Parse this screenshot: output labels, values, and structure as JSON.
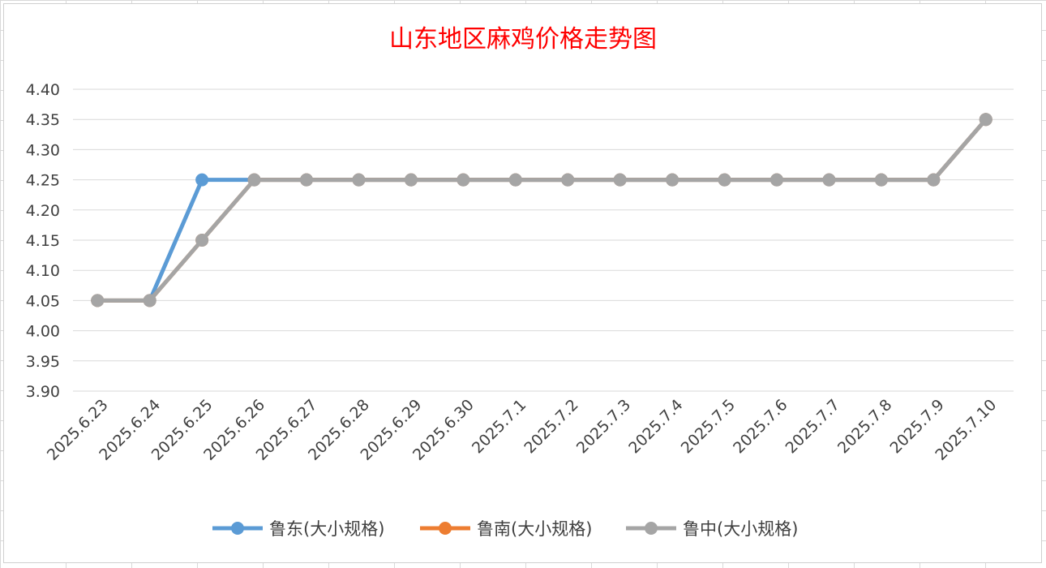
{
  "chart_data": {
    "type": "line",
    "title": "山东地区麻鸡价格走势图",
    "xlabel": "",
    "ylabel": "",
    "ylim": [
      3.9,
      4.4
    ],
    "yticks": [
      "4.40",
      "4.35",
      "4.30",
      "4.25",
      "4.20",
      "4.15",
      "4.10",
      "4.05",
      "4.00",
      "3.95",
      "3.90"
    ],
    "grid": true,
    "legend_position": "bottom",
    "categories": [
      "2025.6.23",
      "2025.6.24",
      "2025.6.25",
      "2025.6.26",
      "2025.6.27",
      "2025.6.28",
      "2025.6.29",
      "2025.6.30",
      "2025.7.1",
      "2025.7.2",
      "2025.7.3",
      "2025.7.4",
      "2025.7.5",
      "2025.7.6",
      "2025.7.7",
      "2025.7.8",
      "2025.7.9",
      "2025.7.10"
    ],
    "series": [
      {
        "name": "鲁东(大小规格)",
        "color": "#5b9bd5",
        "values": [
          4.05,
          4.05,
          4.25,
          4.25,
          4.25,
          4.25,
          4.25,
          4.25,
          4.25,
          4.25,
          4.25,
          4.25,
          4.25,
          4.25,
          4.25,
          4.25,
          4.25,
          4.35
        ]
      },
      {
        "name": "鲁南(大小规格)",
        "color": "#ed7d31",
        "values": [
          4.05,
          4.05,
          4.15,
          4.25,
          4.25,
          4.25,
          4.25,
          4.25,
          4.25,
          4.25,
          4.25,
          4.25,
          4.25,
          4.25,
          4.25,
          4.25,
          4.25,
          4.35
        ]
      },
      {
        "name": "鲁中(大小规格)",
        "color": "#a5a5a5",
        "values": [
          4.05,
          4.05,
          4.15,
          4.25,
          4.25,
          4.25,
          4.25,
          4.25,
          4.25,
          4.25,
          4.25,
          4.25,
          4.25,
          4.25,
          4.25,
          4.25,
          4.25,
          4.35
        ]
      }
    ]
  }
}
